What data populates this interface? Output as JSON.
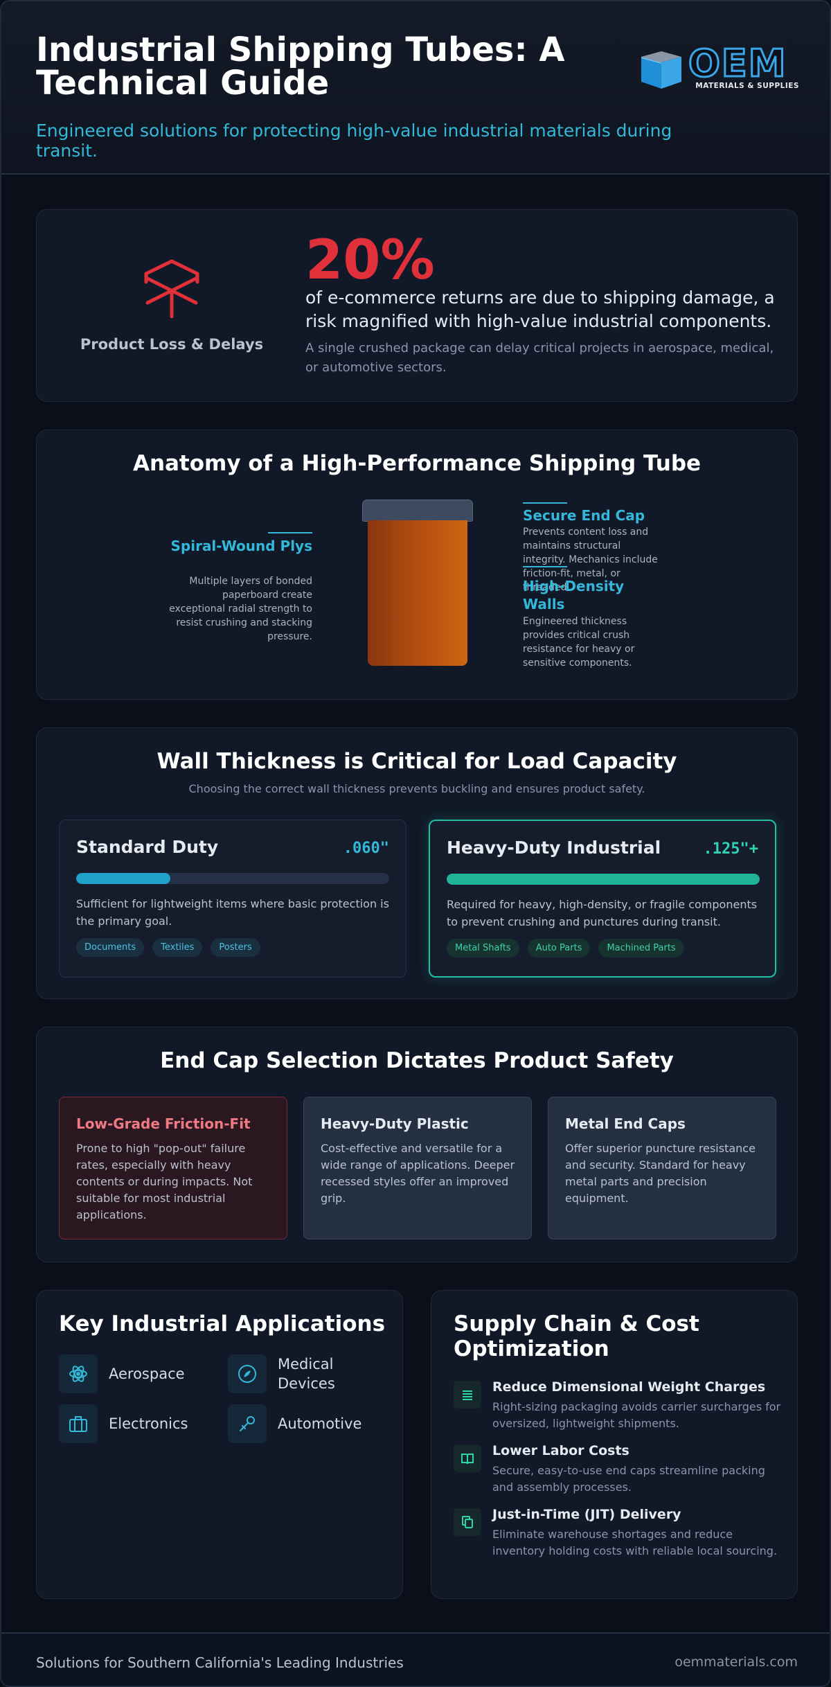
{
  "header": {
    "title": "Industrial Shipping Tubes: A Technical Guide",
    "subtitle": "Engineered solutions for protecting high-value industrial materials during transit.",
    "logo": {
      "word": "OEM",
      "tagline": "MATERIALS & SUPPLIES"
    }
  },
  "loss": {
    "icon": "open-box-icon",
    "label": "Product Loss & Delays",
    "percent": "20%",
    "lead": "of e-commerce returns are due to shipping damage, a risk magnified with high-value industrial components.",
    "note": "A single crushed package can delay critical projects in aerospace, medical, or automotive sectors."
  },
  "anatomy": {
    "title": "Anatomy of a High-Performance Shipping Tube",
    "plys": {
      "title": "Spiral-Wound Plys",
      "text": "Multiple layers of bonded paperboard create exceptional radial strength to resist crushing and stacking pressure."
    },
    "cap": {
      "title": "Secure End Cap",
      "text": "Prevents content loss and maintains structural integrity. Mechanics include friction-fit, metal, or threaded."
    },
    "walls": {
      "title": "High-Density Walls",
      "text": "Engineered thickness provides critical crush resistance for heavy or sensitive components."
    }
  },
  "thickness": {
    "title": "Wall Thickness is Critical for Load Capacity",
    "subtitle": "Choosing the correct wall thickness prevents buckling and ensures product safety.",
    "standard": {
      "name": "Standard Duty",
      "value": ".060\"",
      "fill": 0.3,
      "desc": "Sufficient for lightweight items where basic protection is the primary goal.",
      "tags": [
        "Documents",
        "Textiles",
        "Posters"
      ]
    },
    "heavy": {
      "name": "Heavy-Duty Industrial",
      "value": ".125\"+",
      "fill": 1.0,
      "desc": "Required for heavy, high-density, or fragile components to prevent crushing and punctures during transit.",
      "tags": [
        "Metal Shafts",
        "Auto Parts",
        "Machined Parts"
      ]
    }
  },
  "endcaps": {
    "title": "End Cap Selection Dictates Product Safety",
    "items": [
      {
        "title": "Low-Grade Friction-Fit",
        "text": "Prone to high \"pop-out\" failure rates, especially with heavy contents or during impacts. Not suitable for most industrial applications."
      },
      {
        "title": "Heavy-Duty Plastic",
        "text": "Cost-effective and versatile for a wide range of applications. Deeper recessed styles offer an improved grip."
      },
      {
        "title": "Metal End Caps",
        "text": "Offer superior puncture resistance and security. Standard for heavy metal parts and precision equipment."
      }
    ]
  },
  "applications": {
    "title": "Key Industrial Applications",
    "items": [
      {
        "label": "Aerospace",
        "icon": "atom-icon"
      },
      {
        "label": "Medical Devices",
        "icon": "compass-icon"
      },
      {
        "label": "Electronics",
        "icon": "briefcase-icon"
      },
      {
        "label": "Automotive",
        "icon": "wrench-icon"
      }
    ]
  },
  "supply": {
    "title": "Supply Chain & Cost Optimization",
    "items": [
      {
        "title": "Reduce Dimensional Weight Charges",
        "text": "Right-sizing packaging avoids carrier surcharges for oversized, lightweight shipments.",
        "icon": "list-icon"
      },
      {
        "title": "Lower Labor Costs",
        "text": "Secure, easy-to-use end caps streamline packing and assembly processes.",
        "icon": "book-icon"
      },
      {
        "title": "Just-in-Time (JIT) Delivery",
        "text": "Eliminate warehouse shortages and reduce inventory holding costs with reliable local sourcing.",
        "icon": "copy-icon"
      }
    ]
  },
  "footer": {
    "left": "Solutions for Southern California's Leading Industries",
    "right": "oemmaterials.com"
  },
  "colors": {
    "accent": "#34b8d9",
    "danger": "#e0313b",
    "teal": "#20b395",
    "background": "#0b0f19"
  }
}
